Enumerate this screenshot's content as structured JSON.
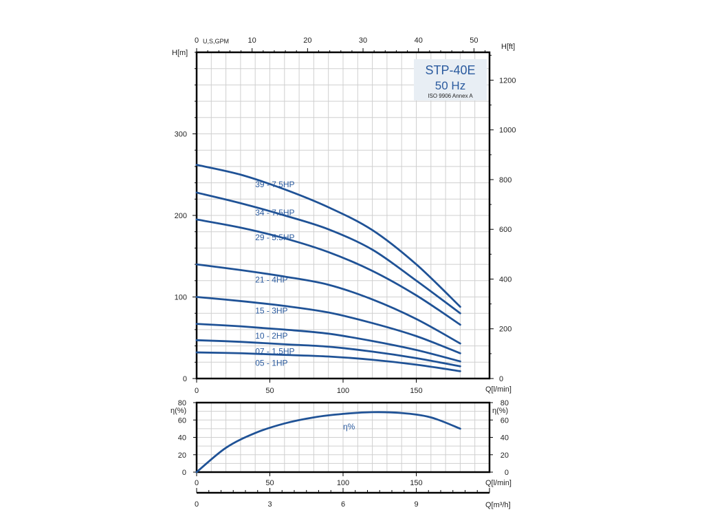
{
  "chart_data": [
    {
      "type": "line",
      "name_badge": {
        "model": "STP-40E",
        "frequency": "50 Hz",
        "standard": "ISO 9906 Annex A"
      },
      "x_unit": "Q[l/min]",
      "x_ticks": [
        0,
        50,
        100,
        150
      ],
      "xlim": [
        0,
        200
      ],
      "top_axis": {
        "label": "U,S,GPM",
        "ticks": [
          0,
          10,
          20,
          30,
          40,
          50
        ],
        "lim": [
          0,
          52.8
        ]
      },
      "y_left_unit": "H[m]",
      "y_left_ticks": [
        0,
        100,
        200,
        300
      ],
      "ylim": [
        0,
        400
      ],
      "y_right_unit": "H[ft]",
      "y_right_ticks": [
        0,
        200,
        400,
        600,
        800,
        1000,
        1200
      ],
      "y_right_lim": [
        0,
        1312
      ],
      "grid": true,
      "series_color": "#1f5296",
      "series": [
        {
          "name": "39 - 7.5HP",
          "x": [
            0,
            30,
            60,
            90,
            120,
            150,
            180
          ],
          "values": [
            262,
            250,
            232,
            210,
            182,
            140,
            88
          ]
        },
        {
          "name": "34 - 7.5HP",
          "x": [
            0,
            30,
            60,
            90,
            120,
            150,
            180
          ],
          "values": [
            228,
            215,
            200,
            183,
            158,
            120,
            80
          ]
        },
        {
          "name": "29 - 5.5HP",
          "x": [
            0,
            30,
            60,
            90,
            120,
            150,
            180
          ],
          "values": [
            195,
            185,
            172,
            155,
            132,
            102,
            66
          ]
        },
        {
          "name": "21 - 4HP",
          "x": [
            0,
            30,
            60,
            90,
            120,
            150,
            180
          ],
          "values": [
            140,
            133,
            125,
            115,
            97,
            73,
            43
          ]
        },
        {
          "name": "15 - 3HP",
          "x": [
            0,
            30,
            60,
            90,
            120,
            150,
            180
          ],
          "values": [
            100,
            95,
            89,
            81,
            68,
            52,
            31
          ]
        },
        {
          "name": "10 - 2HP",
          "x": [
            0,
            30,
            60,
            90,
            120,
            150,
            180
          ],
          "values": [
            67,
            64,
            60,
            55,
            46,
            35,
            21
          ]
        },
        {
          "name": "07 - 1.5HP",
          "x": [
            0,
            30,
            60,
            90,
            120,
            150,
            180
          ],
          "values": [
            47,
            45,
            42,
            39,
            33,
            25,
            15
          ]
        },
        {
          "name": "05 - 1HP",
          "x": [
            0,
            30,
            60,
            90,
            120,
            150,
            180
          ],
          "values": [
            32,
            31,
            29,
            27,
            23,
            17,
            9
          ]
        }
      ]
    },
    {
      "type": "line",
      "x_unit": "Q[l/min]",
      "x_ticks": [
        0,
        50,
        100,
        150
      ],
      "xlim": [
        0,
        200
      ],
      "y_left_unit": "η(%)",
      "y_right_unit": "η(%)",
      "y_ticks": [
        0,
        20,
        40,
        60,
        80
      ],
      "ylim": [
        0,
        80
      ],
      "grid": true,
      "bottom_axis": {
        "label": "Q[m³/h]",
        "ticks": [
          0,
          3,
          6,
          9
        ],
        "lim": [
          0,
          12
        ]
      },
      "series": [
        {
          "name": "η%",
          "x": [
            0,
            20,
            40,
            60,
            80,
            100,
            120,
            140,
            160,
            180
          ],
          "values": [
            0,
            28,
            45,
            56,
            63,
            67,
            69,
            68,
            63,
            50
          ]
        }
      ]
    }
  ]
}
